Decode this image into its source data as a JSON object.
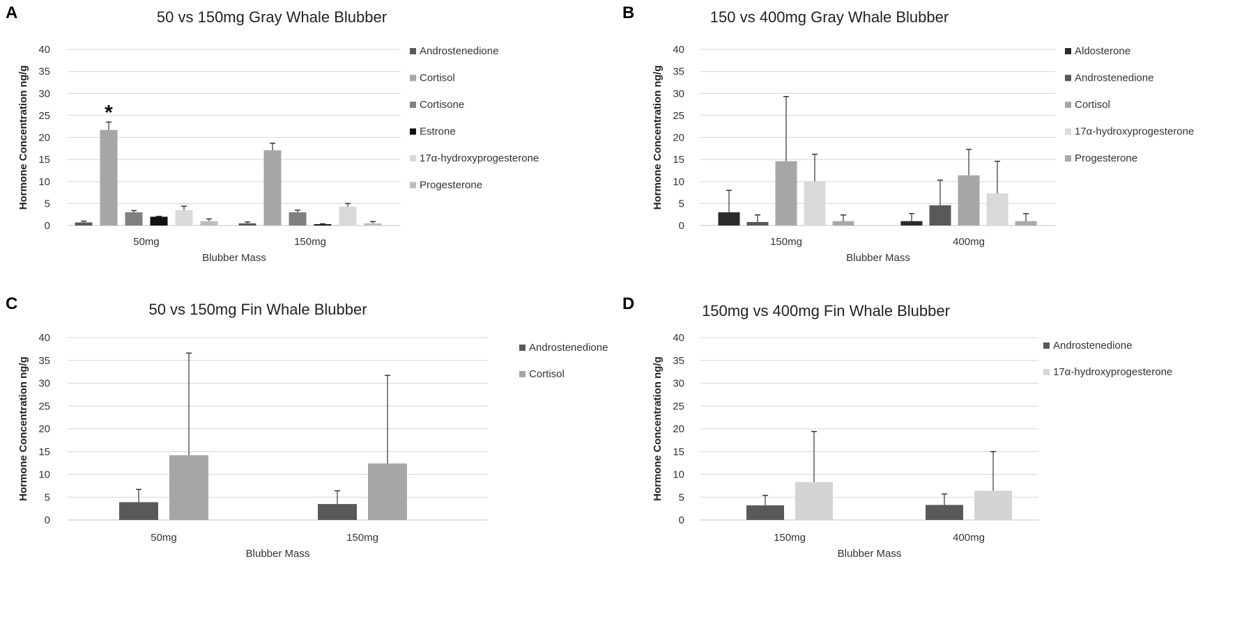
{
  "chart_data": [
    {
      "type": "bar",
      "panel_letter": "A",
      "title": "50 vs 150mg Gray Whale Blubber",
      "xlabel": "Blubber Mass",
      "ylabel": "Hormone Concentration ng/g",
      "ylim": [
        0,
        40
      ],
      "yticks": [
        0,
        5,
        10,
        15,
        20,
        25,
        30,
        35,
        40
      ],
      "grid": true,
      "legend_position": "right",
      "categories": [
        "50mg",
        "150mg"
      ],
      "series": [
        {
          "name": "Androstenedione",
          "color": "#595959",
          "values": [
            0.7,
            0.5
          ],
          "error_upper": [
            1.0,
            0.8
          ]
        },
        {
          "name": "Cortisol",
          "color": "#a6a6a6",
          "values": [
            21.7,
            17.1
          ],
          "error_upper": [
            23.5,
            18.7
          ]
        },
        {
          "name": "Cortisone",
          "color": "#7f7f7f",
          "values": [
            3.0,
            3.0
          ],
          "error_upper": [
            3.4,
            3.5
          ]
        },
        {
          "name": "Estrone",
          "color": "#111111",
          "values": [
            2.0,
            0.3
          ],
          "error_upper": [
            2.1,
            0.4
          ]
        },
        {
          "name": "17α-hydroxyprogesterone",
          "color": "#d9d9d9",
          "values": [
            3.5,
            4.3
          ],
          "error_upper": [
            4.4,
            5.0
          ]
        },
        {
          "name": "Progesterone",
          "color": "#bdbdbd",
          "values": [
            1.0,
            0.5
          ],
          "error_upper": [
            1.5,
            0.9
          ]
        }
      ],
      "annotations": [
        {
          "text": "*",
          "category": "50mg",
          "series": "Cortisol"
        }
      ]
    },
    {
      "type": "bar",
      "panel_letter": "B",
      "title": "150 vs 400mg Gray Whale Blubber",
      "xlabel": "Blubber Mass",
      "ylabel": "Hormone Concentration ng/g",
      "ylim": [
        0,
        40
      ],
      "yticks": [
        0,
        5,
        10,
        15,
        20,
        25,
        30,
        35,
        40
      ],
      "grid": true,
      "legend_position": "right",
      "categories": [
        "150mg",
        "400mg"
      ],
      "series": [
        {
          "name": "Aldosterone",
          "color": "#2b2b2b",
          "values": [
            3.0,
            1.0
          ],
          "error_upper": [
            8.0,
            2.7
          ]
        },
        {
          "name": "Androstenedione",
          "color": "#595959",
          "values": [
            0.8,
            4.6
          ],
          "error_upper": [
            2.4,
            10.3
          ]
        },
        {
          "name": "Cortisol",
          "color": "#a6a6a6",
          "values": [
            14.6,
            11.4
          ],
          "error_upper": [
            29.3,
            17.3
          ]
        },
        {
          "name": "17α-hydroxyprogesterone",
          "color": "#d9d9d9",
          "values": [
            10.0,
            7.3
          ],
          "error_upper": [
            16.2,
            14.6
          ]
        },
        {
          "name": "Progesterone",
          "color": "#a9a9a9",
          "values": [
            1.0,
            1.0
          ],
          "error_upper": [
            2.4,
            2.7
          ]
        }
      ],
      "annotations": []
    },
    {
      "type": "bar",
      "panel_letter": "C",
      "title": "50 vs 150mg Fin Whale Blubber",
      "xlabel": "Blubber Mass",
      "ylabel": "Hormone Concentration ng/g",
      "ylim": [
        0,
        40
      ],
      "yticks": [
        0,
        5,
        10,
        15,
        20,
        25,
        30,
        35,
        40
      ],
      "grid": true,
      "legend_position": "right",
      "categories": [
        "50mg",
        "150mg"
      ],
      "series": [
        {
          "name": "Androstenedione",
          "color": "#595959",
          "values": [
            3.9,
            3.5
          ],
          "error_upper": [
            6.7,
            6.4
          ]
        },
        {
          "name": "Cortisol",
          "color": "#a6a6a6",
          "values": [
            14.2,
            12.4
          ],
          "error_upper": [
            36.6,
            31.7
          ]
        }
      ],
      "annotations": []
    },
    {
      "type": "bar",
      "panel_letter": "D",
      "title": "150mg vs 400mg Fin Whale Blubber",
      "xlabel": "Blubber Mass",
      "ylabel": "Hormone Concentration ng/g",
      "ylim": [
        0,
        40
      ],
      "yticks": [
        0,
        5,
        10,
        15,
        20,
        25,
        30,
        35,
        40
      ],
      "grid": true,
      "legend_position": "right",
      "categories": [
        "150mg",
        "400mg"
      ],
      "series": [
        {
          "name": "Androstenedione",
          "color": "#595959",
          "values": [
            3.2,
            3.3
          ],
          "error_upper": [
            5.4,
            5.7
          ]
        },
        {
          "name": "17α-hydroxyprogesterone",
          "color": "#d4d4d4",
          "values": [
            8.3,
            6.4
          ],
          "error_upper": [
            19.4,
            15.0
          ]
        }
      ],
      "annotations": []
    }
  ]
}
